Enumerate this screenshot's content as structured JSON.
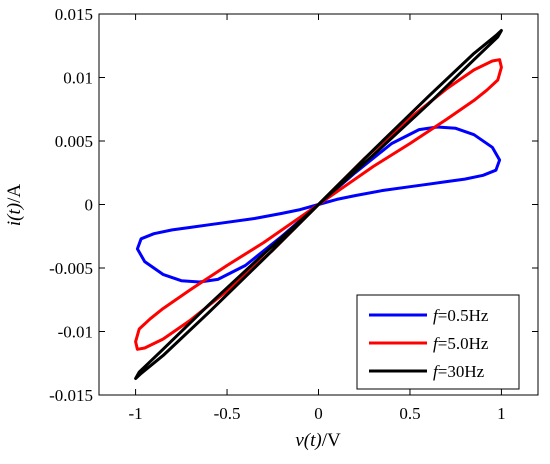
{
  "chart_data": {
    "type": "line",
    "title": "",
    "xlabel": "v(t)/V",
    "ylabel": "i(t)/A",
    "xlim": [
      -1.2,
      1.2
    ],
    "ylim": [
      -0.015,
      0.015
    ],
    "x_ticks": [
      {
        "value": -1,
        "label": "-1"
      },
      {
        "value": -0.5,
        "label": "-0.5"
      },
      {
        "value": 0,
        "label": "0"
      },
      {
        "value": 0.5,
        "label": "0.5"
      },
      {
        "value": 1,
        "label": "1"
      }
    ],
    "y_ticks": [
      {
        "value": -0.015,
        "label": "-0.015"
      },
      {
        "value": -0.01,
        "label": "-0.01"
      },
      {
        "value": -0.005,
        "label": "-0.005"
      },
      {
        "value": 0,
        "label": "0"
      },
      {
        "value": 0.005,
        "label": "0.005"
      },
      {
        "value": 0.01,
        "label": "0.01"
      },
      {
        "value": 0.015,
        "label": "0.015"
      }
    ],
    "grid": false,
    "legend_position": "bottom-right",
    "series": [
      {
        "name": "f=0.5Hz",
        "label_italic": "f",
        "label_rest": "=0.5Hz",
        "color": "#0000ff",
        "x": [
          0,
          0.2,
          0.4,
          0.55,
          0.65,
          0.75,
          0.85,
          0.95,
          0.99,
          0.97,
          0.9,
          0.8,
          0.7,
          0.6,
          0.5,
          0.35,
          0.2,
          0.1,
          0,
          -0.2,
          -0.4,
          -0.55,
          -0.65,
          -0.75,
          -0.85,
          -0.95,
          -0.99,
          -0.97,
          -0.9,
          -0.8,
          -0.7,
          -0.6,
          -0.5,
          -0.35,
          -0.2,
          -0.1,
          0
        ],
        "y": [
          0,
          0.0025,
          0.0048,
          0.0059,
          0.0061,
          0.006,
          0.0055,
          0.0045,
          0.0035,
          0.0027,
          0.0023,
          0.002,
          0.0018,
          0.0016,
          0.0014,
          0.0011,
          0.0007,
          0.0004,
          0,
          -0.0025,
          -0.0048,
          -0.0059,
          -0.0061,
          -0.006,
          -0.0055,
          -0.0045,
          -0.0035,
          -0.0027,
          -0.0023,
          -0.002,
          -0.0018,
          -0.0016,
          -0.0014,
          -0.0011,
          -0.0007,
          -0.0004,
          0
        ]
      },
      {
        "name": "f=5.0Hz",
        "label_italic": "f",
        "label_rest": "=5.0Hz",
        "color": "#ff0000",
        "x": [
          0,
          0.25,
          0.5,
          0.7,
          0.85,
          0.95,
          0.99,
          1.0,
          0.98,
          0.92,
          0.85,
          0.7,
          0.5,
          0.3,
          0.1,
          0,
          -0.25,
          -0.5,
          -0.7,
          -0.85,
          -0.95,
          -0.99,
          -1.0,
          -0.98,
          -0.92,
          -0.85,
          -0.7,
          -0.5,
          -0.3,
          -0.1,
          0
        ],
        "y": [
          0,
          0.0036,
          0.0068,
          0.0091,
          0.0106,
          0.0113,
          0.0114,
          0.0108,
          0.0098,
          0.009,
          0.0082,
          0.0067,
          0.0048,
          0.003,
          0.001,
          0,
          -0.0036,
          -0.0068,
          -0.0091,
          -0.0106,
          -0.0113,
          -0.0114,
          -0.0108,
          -0.0098,
          -0.009,
          -0.0082,
          -0.0067,
          -0.0048,
          -0.003,
          -0.001,
          0
        ]
      },
      {
        "name": "f=30Hz",
        "label_italic": "f",
        "label_rest": "=30Hz",
        "color": "#000000",
        "x": [
          0,
          0.3,
          0.6,
          0.85,
          0.97,
          1.0,
          0.98,
          0.85,
          0.6,
          0.3,
          0,
          -0.3,
          -0.6,
          -0.85,
          -0.97,
          -1.0,
          -0.98,
          -0.85,
          -0.6,
          -0.3,
          0
        ],
        "y": [
          0,
          0.0043,
          0.0085,
          0.0119,
          0.0133,
          0.0137,
          0.0132,
          0.0114,
          0.0079,
          0.0039,
          0,
          -0.0043,
          -0.0085,
          -0.0119,
          -0.0133,
          -0.0137,
          -0.0132,
          -0.0114,
          -0.0079,
          -0.0039,
          0
        ]
      }
    ]
  }
}
